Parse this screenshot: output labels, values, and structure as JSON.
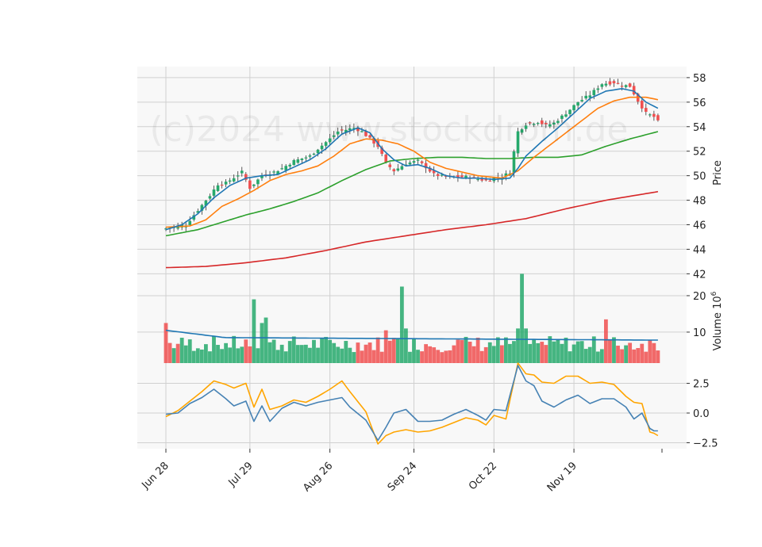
{
  "watermark": "(c)2024 www.stockdrom.de",
  "colors": {
    "up": "#26a96c",
    "down": "#f05050",
    "ma_fast": "#1f77b4",
    "ma_mid": "#ff7f0e",
    "ma_slow": "#2ca02c",
    "ma_long": "#d62728",
    "volume_ma": "#1f77b4",
    "osc_a": "#4682b4",
    "osc_b": "#ffa500",
    "panel_bg": "#f8f8f8",
    "grid": "#d0d0d0"
  },
  "chart_data": [
    {
      "type": "candlestick",
      "panel": "price",
      "ylabel": "Price",
      "ylim": [
        41.7,
        58.9
      ],
      "yticks": [
        42,
        44,
        46,
        48,
        50,
        52,
        54,
        56,
        58
      ],
      "xticks": [
        "Jun 28",
        "Jul 29",
        "Aug 26",
        "Sep 24",
        "Oct 22",
        "Nov 19"
      ],
      "xtick_index": [
        0,
        21,
        41,
        62,
        82,
        102
      ],
      "count": 124,
      "anchors": [
        [
          0,
          45.7
        ],
        [
          3,
          45.9
        ],
        [
          5,
          46.0
        ],
        [
          8,
          47.2
        ],
        [
          11,
          48.4
        ],
        [
          13,
          49.3
        ],
        [
          15,
          49.4
        ],
        [
          19,
          50.3
        ],
        [
          21,
          49.0
        ],
        [
          24,
          50.0
        ],
        [
          27,
          50.3
        ],
        [
          29,
          50.6
        ],
        [
          32,
          51.2
        ],
        [
          36,
          51.6
        ],
        [
          38,
          52.2
        ],
        [
          41,
          53.0
        ],
        [
          43,
          53.6
        ],
        [
          47,
          53.9
        ],
        [
          49,
          53.6
        ],
        [
          53,
          52.4
        ],
        [
          55,
          51.0
        ],
        [
          57,
          50.4
        ],
        [
          60,
          51.0
        ],
        [
          63,
          51.2
        ],
        [
          65,
          50.7
        ],
        [
          67,
          50.1
        ],
        [
          70,
          49.9
        ],
        [
          73,
          49.9
        ],
        [
          75,
          49.9
        ],
        [
          77,
          49.8
        ],
        [
          80,
          49.6
        ],
        [
          82,
          49.8
        ],
        [
          84,
          49.9
        ],
        [
          86,
          50.3
        ],
        [
          88,
          53.6
        ],
        [
          90,
          54.2
        ],
        [
          93,
          54.4
        ],
        [
          95,
          54.1
        ],
        [
          97,
          54.3
        ],
        [
          100,
          55.1
        ],
        [
          103,
          56.0
        ],
        [
          106,
          56.6
        ],
        [
          109,
          57.5
        ],
        [
          112,
          57.6
        ],
        [
          114,
          57.4
        ],
        [
          116,
          57.3
        ],
        [
          118,
          56.1
        ],
        [
          120,
          55.1
        ],
        [
          122,
          54.8
        ],
        [
          123,
          54.4
        ]
      ],
      "ma_fast_anchors": [
        [
          0,
          45.6
        ],
        [
          4,
          46.0
        ],
        [
          8,
          46.9
        ],
        [
          12,
          48.2
        ],
        [
          16,
          49.2
        ],
        [
          20,
          49.8
        ],
        [
          24,
          50.0
        ],
        [
          28,
          50.1
        ],
        [
          32,
          50.7
        ],
        [
          36,
          51.3
        ],
        [
          40,
          52.2
        ],
        [
          44,
          53.4
        ],
        [
          48,
          53.9
        ],
        [
          51,
          53.5
        ],
        [
          54,
          52.2
        ],
        [
          57,
          51.3
        ],
        [
          60,
          50.8
        ],
        [
          63,
          50.9
        ],
        [
          66,
          50.6
        ],
        [
          70,
          50.0
        ],
        [
          74,
          49.8
        ],
        [
          78,
          49.8
        ],
        [
          82,
          49.7
        ],
        [
          86,
          49.8
        ],
        [
          88,
          50.6
        ],
        [
          90,
          51.6
        ],
        [
          94,
          52.8
        ],
        [
          98,
          53.9
        ],
        [
          102,
          55.1
        ],
        [
          106,
          56.3
        ],
        [
          110,
          56.9
        ],
        [
          114,
          57.1
        ],
        [
          117,
          56.9
        ],
        [
          120,
          56.0
        ],
        [
          123,
          55.5
        ]
      ],
      "ma_mid_anchors": [
        [
          0,
          45.8
        ],
        [
          6,
          45.9
        ],
        [
          10,
          46.4
        ],
        [
          14,
          47.5
        ],
        [
          18,
          48.1
        ],
        [
          22,
          48.8
        ],
        [
          26,
          49.6
        ],
        [
          30,
          50.1
        ],
        [
          34,
          50.4
        ],
        [
          38,
          50.8
        ],
        [
          42,
          51.6
        ],
        [
          46,
          52.6
        ],
        [
          50,
          53.0
        ],
        [
          54,
          52.9
        ],
        [
          58,
          52.6
        ],
        [
          62,
          52.0
        ],
        [
          66,
          51.1
        ],
        [
          70,
          50.6
        ],
        [
          74,
          50.3
        ],
        [
          78,
          50.0
        ],
        [
          84,
          49.8
        ],
        [
          88,
          50.4
        ],
        [
          92,
          51.5
        ],
        [
          96,
          52.5
        ],
        [
          100,
          53.5
        ],
        [
          104,
          54.5
        ],
        [
          108,
          55.5
        ],
        [
          112,
          56.1
        ],
        [
          116,
          56.4
        ],
        [
          120,
          56.4
        ],
        [
          123,
          56.2
        ]
      ],
      "ma_slow_anchors": [
        [
          0,
          45.1
        ],
        [
          8,
          45.6
        ],
        [
          14,
          46.2
        ],
        [
          20,
          46.8
        ],
        [
          26,
          47.3
        ],
        [
          32,
          47.9
        ],
        [
          38,
          48.6
        ],
        [
          44,
          49.6
        ],
        [
          50,
          50.5
        ],
        [
          56,
          51.2
        ],
        [
          62,
          51.4
        ],
        [
          68,
          51.5
        ],
        [
          74,
          51.5
        ],
        [
          80,
          51.4
        ],
        [
          86,
          51.4
        ],
        [
          92,
          51.5
        ],
        [
          98,
          51.5
        ],
        [
          104,
          51.7
        ],
        [
          110,
          52.4
        ],
        [
          116,
          53.0
        ],
        [
          123,
          53.6
        ]
      ],
      "ma_long_anchors": [
        [
          0,
          42.5
        ],
        [
          10,
          42.6
        ],
        [
          20,
          42.9
        ],
        [
          30,
          43.3
        ],
        [
          40,
          43.9
        ],
        [
          50,
          44.6
        ],
        [
          60,
          45.1
        ],
        [
          70,
          45.6
        ],
        [
          80,
          46.0
        ],
        [
          90,
          46.5
        ],
        [
          100,
          47.3
        ],
        [
          110,
          48.0
        ],
        [
          123,
          48.7
        ]
      ]
    },
    {
      "type": "bar",
      "panel": "volume",
      "ylabel": "Volume  10^6",
      "ylim": [
        1.5,
        25
      ],
      "yticks": [
        10,
        20
      ],
      "ytick_labels": [
        "10",
        "20"
      ],
      "count": 124,
      "spikes": [
        [
          0,
          12.5
        ],
        [
          22,
          19.0
        ],
        [
          24,
          12.5
        ],
        [
          25,
          14.0
        ],
        [
          55,
          10.5
        ],
        [
          59,
          22.5
        ],
        [
          60,
          11.0
        ],
        [
          110,
          13.5
        ],
        [
          89,
          26.0
        ],
        [
          88,
          11.0
        ],
        [
          90,
          11.0
        ]
      ],
      "volume_ma_start": 10.5,
      "volume_ma_level": 8.5,
      "volume_ma_end": 7.8
    },
    {
      "type": "line",
      "panel": "oscillator",
      "ylim": [
        -3.0,
        4.2
      ],
      "yticks": [
        -2.5,
        0.0,
        2.5
      ],
      "ytick_labels": [
        "−2.5",
        "0.0",
        "2.5"
      ],
      "count": 124,
      "osc_a_anchors": [
        [
          0,
          -0.1
        ],
        [
          3,
          0.0
        ],
        [
          6,
          0.8
        ],
        [
          9,
          1.3
        ],
        [
          12,
          2.0
        ],
        [
          15,
          1.2
        ],
        [
          17,
          0.6
        ],
        [
          20,
          1.0
        ],
        [
          22,
          -0.7
        ],
        [
          24,
          0.6
        ],
        [
          26,
          -0.7
        ],
        [
          29,
          0.4
        ],
        [
          32,
          0.9
        ],
        [
          35,
          0.6
        ],
        [
          38,
          0.9
        ],
        [
          41,
          1.1
        ],
        [
          44,
          1.3
        ],
        [
          46,
          0.5
        ],
        [
          50,
          -0.6
        ],
        [
          53,
          -2.3
        ],
        [
          55,
          -1.2
        ],
        [
          57,
          0.0
        ],
        [
          60,
          0.3
        ],
        [
          63,
          -0.7
        ],
        [
          66,
          -0.7
        ],
        [
          69,
          -0.6
        ],
        [
          72,
          -0.1
        ],
        [
          75,
          0.3
        ],
        [
          78,
          -0.2
        ],
        [
          80,
          -0.6
        ],
        [
          82,
          0.3
        ],
        [
          85,
          0.2
        ],
        [
          88,
          4.0
        ],
        [
          90,
          2.7
        ],
        [
          92,
          2.3
        ],
        [
          94,
          1.0
        ],
        [
          97,
          0.5
        ],
        [
          100,
          1.1
        ],
        [
          103,
          1.5
        ],
        [
          106,
          0.8
        ],
        [
          109,
          1.2
        ],
        [
          112,
          1.2
        ],
        [
          115,
          0.5
        ],
        [
          117,
          -0.5
        ],
        [
          119,
          0.0
        ],
        [
          121,
          -1.3
        ],
        [
          122,
          -1.5
        ],
        [
          124,
          -1.5
        ]
      ],
      "osc_b_anchors": [
        [
          0,
          -0.3
        ],
        [
          3,
          0.2
        ],
        [
          6,
          1.0
        ],
        [
          9,
          1.8
        ],
        [
          12,
          2.7
        ],
        [
          15,
          2.4
        ],
        [
          17,
          2.1
        ],
        [
          20,
          2.5
        ],
        [
          22,
          0.5
        ],
        [
          24,
          2.0
        ],
        [
          26,
          0.3
        ],
        [
          29,
          0.6
        ],
        [
          32,
          1.1
        ],
        [
          35,
          0.9
        ],
        [
          38,
          1.4
        ],
        [
          41,
          2.0
        ],
        [
          44,
          2.7
        ],
        [
          46,
          1.8
        ],
        [
          50,
          0.1
        ],
        [
          53,
          -2.6
        ],
        [
          55,
          -1.9
        ],
        [
          57,
          -1.6
        ],
        [
          60,
          -1.4
        ],
        [
          63,
          -1.6
        ],
        [
          66,
          -1.5
        ],
        [
          69,
          -1.2
        ],
        [
          72,
          -0.8
        ],
        [
          75,
          -0.4
        ],
        [
          78,
          -0.6
        ],
        [
          80,
          -1.0
        ],
        [
          82,
          -0.2
        ],
        [
          85,
          -0.5
        ],
        [
          88,
          4.2
        ],
        [
          90,
          3.3
        ],
        [
          92,
          3.2
        ],
        [
          94,
          2.6
        ],
        [
          97,
          2.5
        ],
        [
          100,
          3.1
        ],
        [
          103,
          3.1
        ],
        [
          106,
          2.5
        ],
        [
          109,
          2.6
        ],
        [
          112,
          2.4
        ],
        [
          115,
          1.4
        ],
        [
          117,
          0.9
        ],
        [
          119,
          0.8
        ],
        [
          121,
          -1.6
        ],
        [
          122,
          -1.7
        ],
        [
          124,
          -2.1
        ]
      ]
    }
  ]
}
